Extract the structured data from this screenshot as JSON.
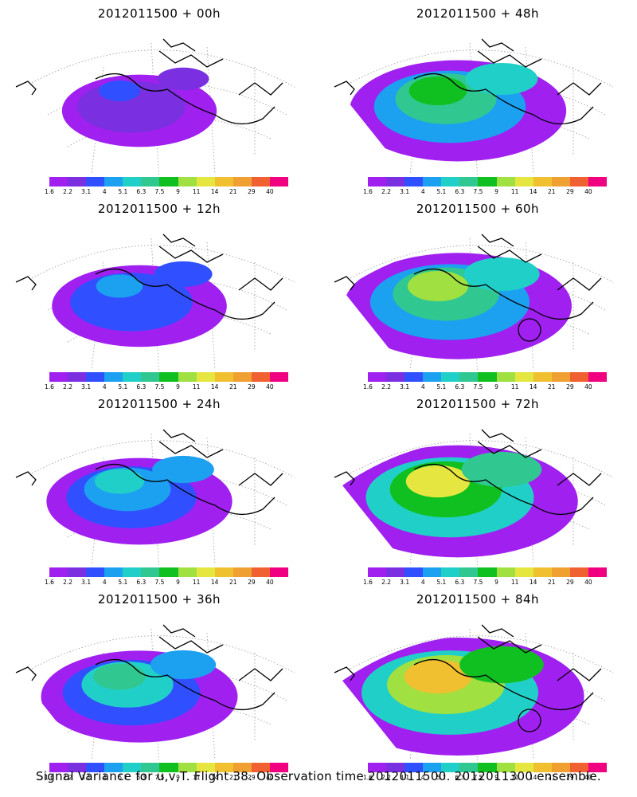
{
  "panels": [
    {
      "title": "2012011500  + 00h",
      "level": 0.15,
      "circle": false
    },
    {
      "title": "2012011500  + 48h",
      "level": 0.55,
      "circle": false
    },
    {
      "title": "2012011500  + 12h",
      "level": 0.28,
      "circle": false
    },
    {
      "title": "2012011500  + 60h",
      "level": 0.62,
      "circle": true
    },
    {
      "title": "2012011500  + 24h",
      "level": 0.35,
      "circle": false
    },
    {
      "title": "2012011500  + 72h",
      "level": 0.7,
      "circle": false
    },
    {
      "title": "2012011500  + 36h",
      "level": 0.42,
      "circle": false
    },
    {
      "title": "2012011500  + 84h",
      "level": 0.78,
      "circle": true
    }
  ],
  "colorbar": {
    "labels": [
      "1.6",
      "2.2",
      "3.1",
      "4",
      "5.1",
      "6.3",
      "7.5",
      "9",
      "11",
      "14",
      "21",
      "29",
      "40"
    ],
    "colors": [
      "#a020f0",
      "#7a30e0",
      "#3050ff",
      "#1ca0f0",
      "#20d0c8",
      "#30c890",
      "#10c020",
      "#a0e040",
      "#e6e640",
      "#f0c030",
      "#f0a030",
      "#f06030",
      "#f00080"
    ]
  },
  "footer": "Signal Variance for u,v,T. Flight 38. Observation time 2012011500. 2012011300 ensemble."
}
